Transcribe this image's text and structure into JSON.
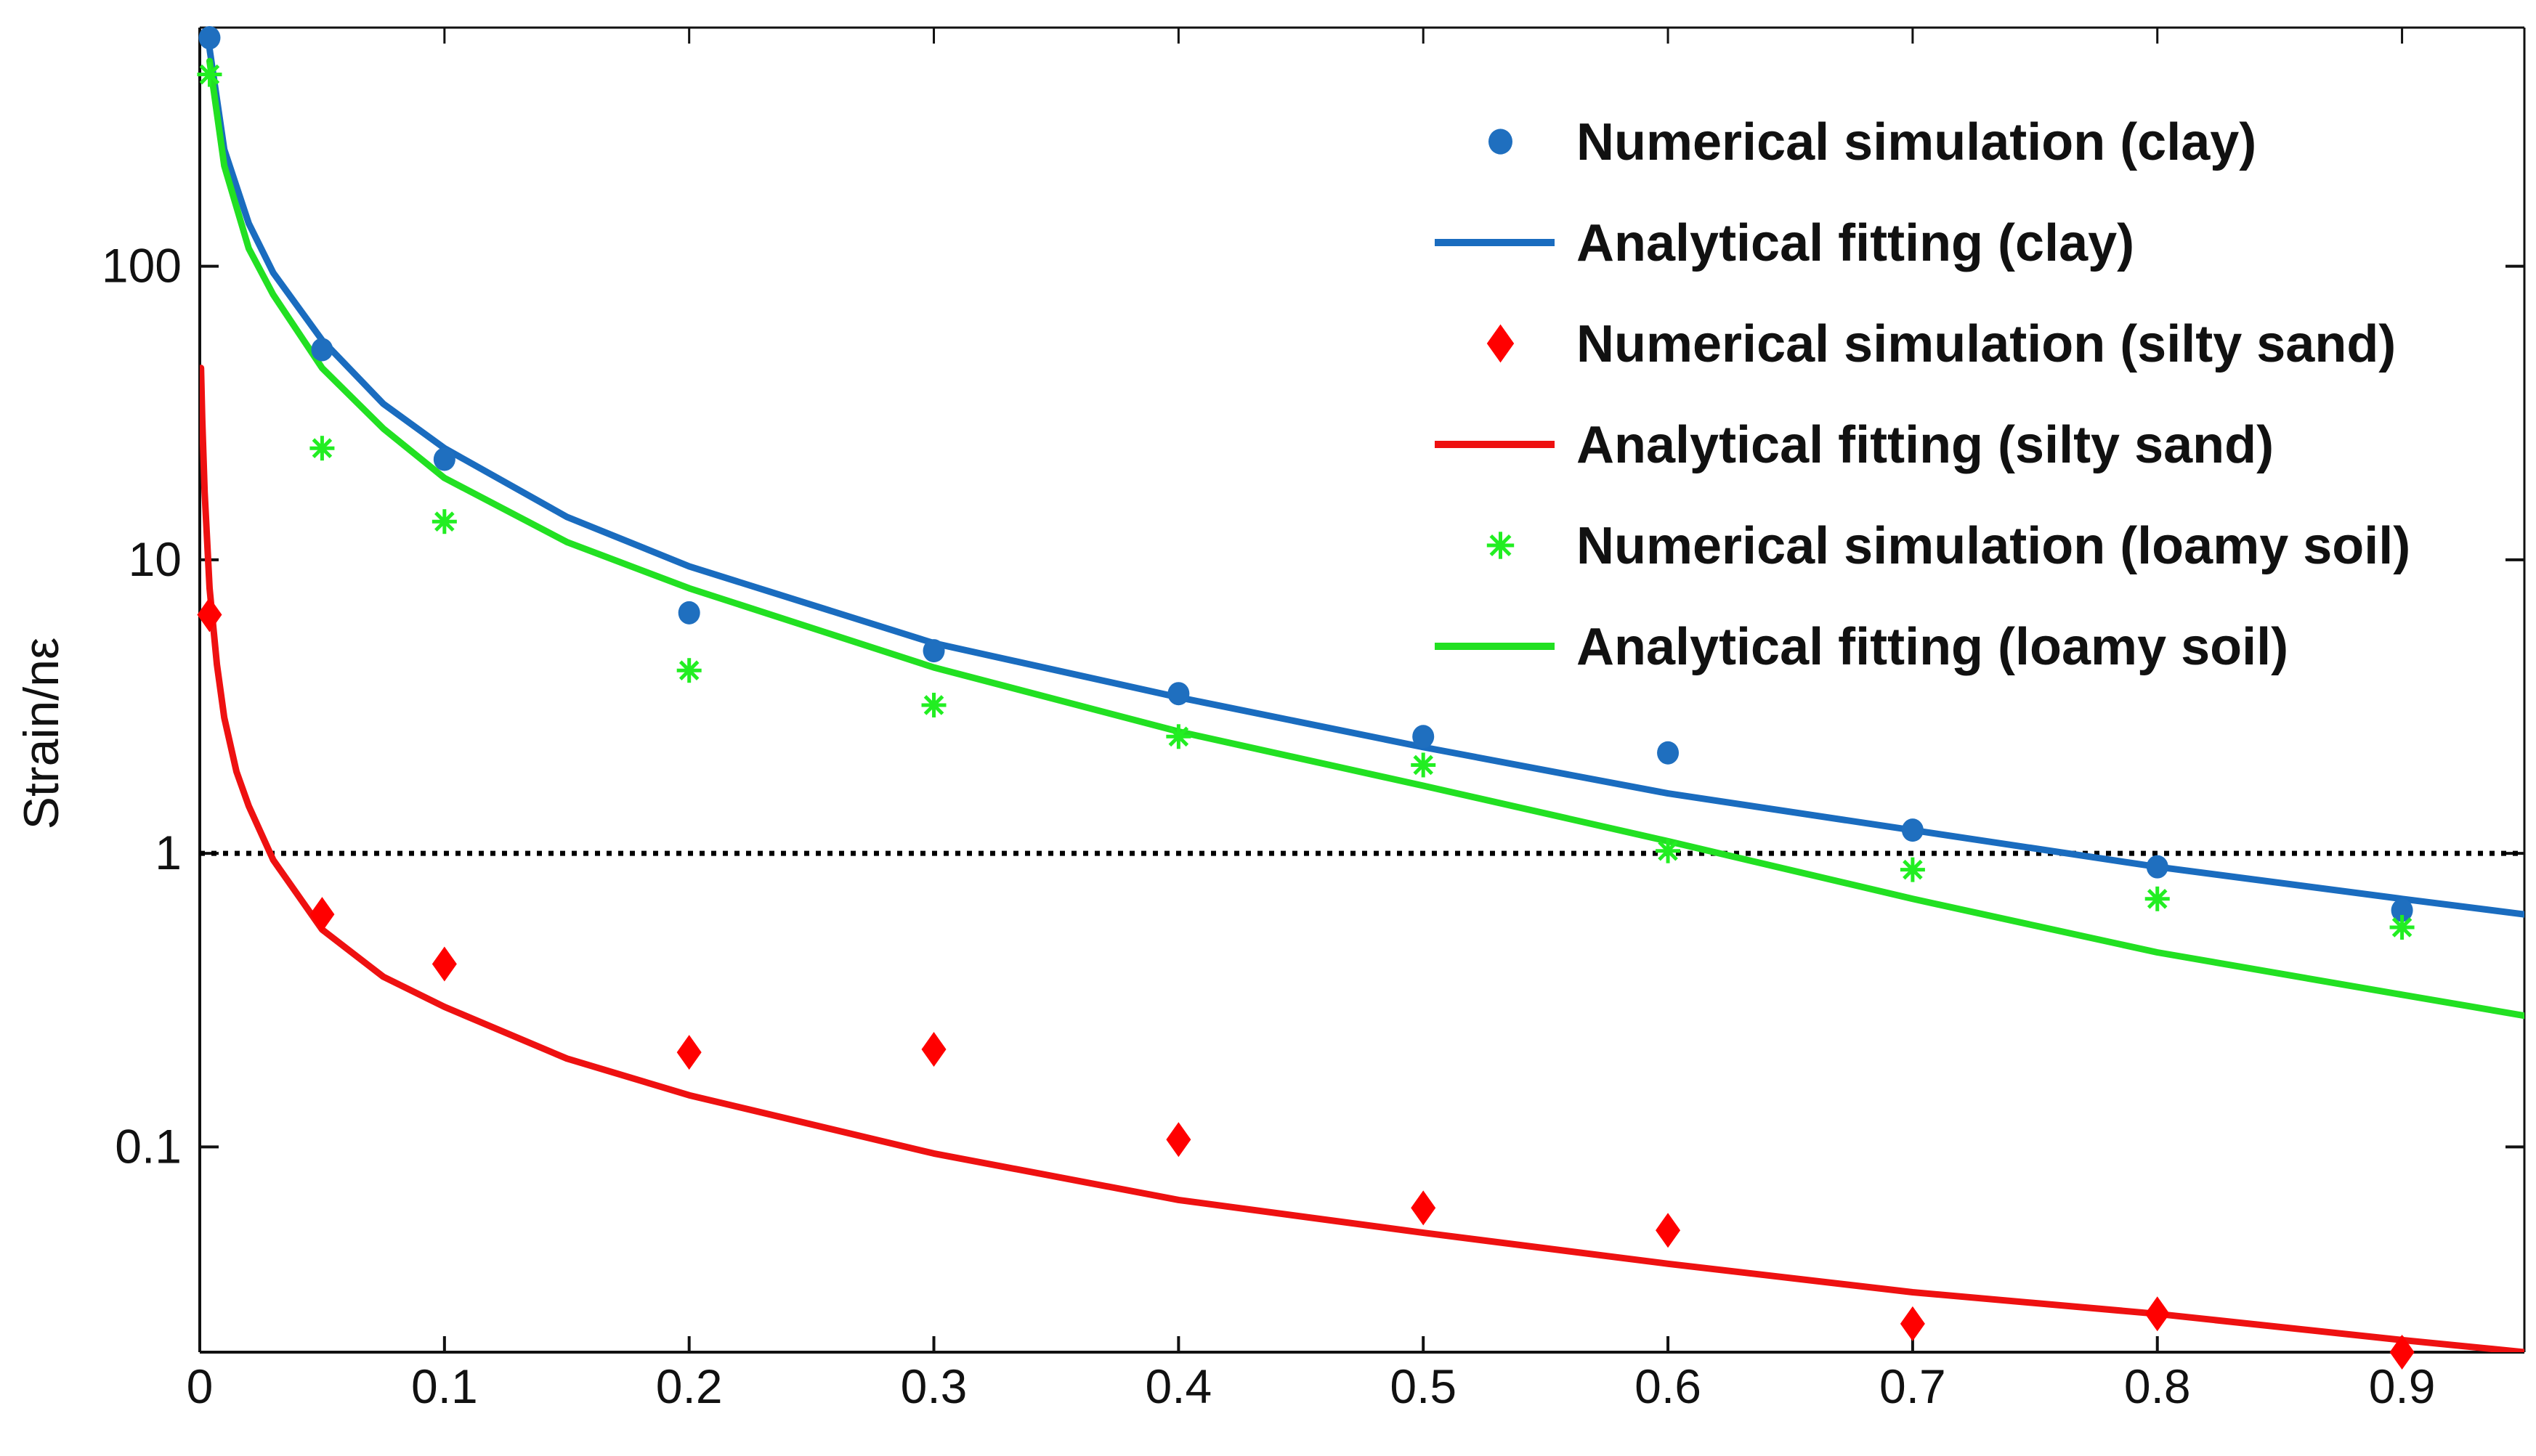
{
  "chart_data": {
    "type": "scatter+line",
    "title": "",
    "xlabel": "",
    "ylabel": "Strain/nε",
    "yscale": "log",
    "xlim": [
      0,
      0.95
    ],
    "ylim": [
      0.02,
      650
    ],
    "grid": false,
    "legend_position": "top-right",
    "x_ticks": [
      0,
      0.1,
      0.2,
      0.3,
      0.4,
      0.5,
      0.6,
      0.7,
      0.8,
      0.9
    ],
    "x_tick_labels": [
      "0",
      "0.1",
      "0.2",
      "0.3",
      "0.4",
      "0.5",
      "0.6",
      "0.7",
      "0.8",
      "0.9"
    ],
    "y_ticks": [
      0.1,
      1,
      10,
      100
    ],
    "y_tick_labels": [
      "0.1",
      "1",
      "10",
      "100"
    ],
    "reference_line": {
      "y": 1,
      "style": "dotted",
      "color": "#000000"
    },
    "series": [
      {
        "name": "Numerical simulation (clay)",
        "kind": "scatter",
        "marker": "circle",
        "color": "#1f6fbf",
        "x": [
          0.004,
          0.05,
          0.1,
          0.2,
          0.3,
          0.4,
          0.5,
          0.6,
          0.7,
          0.8,
          0.9
        ],
        "y": [
          600,
          52,
          22,
          6.6,
          4.9,
          3.5,
          2.5,
          2.2,
          1.2,
          0.9,
          0.64
        ]
      },
      {
        "name": "Analytical fitting (clay)",
        "kind": "line",
        "color": "#1a6cbf",
        "x": [
          0.004,
          0.01,
          0.02,
          0.03,
          0.05,
          0.075,
          0.1,
          0.15,
          0.2,
          0.3,
          0.4,
          0.5,
          0.6,
          0.7,
          0.8,
          0.9,
          0.95
        ],
        "y": [
          550,
          250,
          140,
          95,
          56,
          34,
          24,
          14,
          9.5,
          5.2,
          3.4,
          2.3,
          1.6,
          1.2,
          0.9,
          0.7,
          0.62
        ]
      },
      {
        "name": "Numerical simulation (silty sand)",
        "kind": "scatter",
        "marker": "diamond",
        "color": "#ff0000",
        "x": [
          0.004,
          0.05,
          0.1,
          0.2,
          0.3,
          0.4,
          0.5,
          0.6,
          0.7,
          0.8,
          0.9
        ],
        "y": [
          6.5,
          0.62,
          0.42,
          0.21,
          0.215,
          0.106,
          0.062,
          0.052,
          0.025,
          0.027,
          0.02
        ]
      },
      {
        "name": "Analytical fitting (silty sand)",
        "kind": "line",
        "color": "#ee1111",
        "x": [
          0.0005,
          0.001,
          0.002,
          0.004,
          0.007,
          0.01,
          0.015,
          0.02,
          0.03,
          0.05,
          0.075,
          0.1,
          0.15,
          0.2,
          0.3,
          0.4,
          0.5,
          0.6,
          0.7,
          0.8,
          0.9,
          0.95
        ],
        "y": [
          45,
          30,
          17,
          8,
          4.4,
          2.9,
          1.9,
          1.45,
          0.95,
          0.55,
          0.38,
          0.3,
          0.2,
          0.15,
          0.095,
          0.066,
          0.051,
          0.04,
          0.032,
          0.027,
          0.022,
          0.02
        ]
      },
      {
        "name": "Numerical simulation (loamy soil)",
        "kind": "scatter",
        "marker": "asterisk",
        "color": "#22ee22",
        "x": [
          0.004,
          0.05,
          0.1,
          0.2,
          0.3,
          0.4,
          0.5,
          0.6,
          0.7,
          0.8,
          0.9
        ],
        "y": [
          450,
          24,
          13.5,
          4.2,
          3.2,
          2.5,
          2.0,
          1.02,
          0.88,
          0.7,
          0.56
        ]
      },
      {
        "name": "Analytical fitting (loamy soil)",
        "kind": "line",
        "color": "#22e022",
        "x": [
          0.004,
          0.01,
          0.02,
          0.03,
          0.05,
          0.075,
          0.1,
          0.15,
          0.2,
          0.3,
          0.4,
          0.5,
          0.6,
          0.7,
          0.8,
          0.9,
          0.95
        ],
        "y": [
          500,
          220,
          115,
          80,
          45,
          28,
          19,
          11.5,
          8,
          4.3,
          2.6,
          1.7,
          1.1,
          0.7,
          0.46,
          0.33,
          0.28
        ]
      }
    ]
  }
}
